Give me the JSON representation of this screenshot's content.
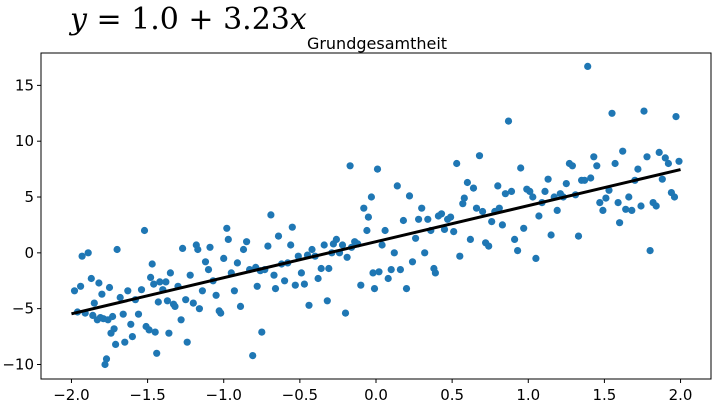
{
  "equation": {
    "var_y": "y",
    "middle": " = 1.0 + 3.23",
    "var_x": "x"
  },
  "chart_data": {
    "type": "scatter",
    "title": "Grundgesamtheit",
    "xlabel": "",
    "ylabel": "",
    "xlim": [
      -2.2,
      2.2
    ],
    "ylim": [
      -11.3,
      17.9
    ],
    "xticks": [
      -2.0,
      -1.5,
      -1.0,
      -0.5,
      0.0,
      0.5,
      1.0,
      1.5,
      2.0
    ],
    "xtick_labels": [
      "−2.0",
      "−1.5",
      "−1.0",
      "−0.5",
      "0.0",
      "0.5",
      "1.0",
      "1.5",
      "2.0"
    ],
    "yticks": [
      -10,
      -5,
      0,
      5,
      10,
      15
    ],
    "ytick_labels": [
      "−10",
      "−5",
      "0",
      "5",
      "10",
      "15"
    ],
    "grid": false,
    "point_color": "#1f77b4",
    "line_color": "#000000",
    "regression_line": {
      "intercept": 1.0,
      "slope": 3.23,
      "x": [
        -2.0,
        2.0
      ],
      "y": [
        -5.46,
        7.46
      ]
    },
    "points": [
      [
        -1.98,
        -3.4
      ],
      [
        -1.96,
        -5.3
      ],
      [
        -1.94,
        -3.0
      ],
      [
        -1.93,
        -0.3
      ],
      [
        -1.91,
        -5.4
      ],
      [
        -1.89,
        0.0
      ],
      [
        -1.87,
        -2.3
      ],
      [
        -1.86,
        -5.6
      ],
      [
        -1.85,
        -4.5
      ],
      [
        -1.83,
        -6.0
      ],
      [
        -1.82,
        -2.7
      ],
      [
        -1.81,
        -5.8
      ],
      [
        -1.8,
        -3.7
      ],
      [
        -1.79,
        -5.9
      ],
      [
        -1.78,
        -10.0
      ],
      [
        -1.77,
        -9.5
      ],
      [
        -1.76,
        -6.0
      ],
      [
        -1.75,
        -3.1
      ],
      [
        -1.74,
        -7.2
      ],
      [
        -1.73,
        -5.7
      ],
      [
        -1.72,
        -6.8
      ],
      [
        -1.71,
        -8.2
      ],
      [
        -1.7,
        0.3
      ],
      [
        -1.68,
        -4.0
      ],
      [
        -1.66,
        -5.5
      ],
      [
        -1.65,
        -8.0
      ],
      [
        -1.63,
        -3.4
      ],
      [
        -1.61,
        -6.4
      ],
      [
        -1.6,
        -7.5
      ],
      [
        -1.58,
        -4.2
      ],
      [
        -1.56,
        -5.5
      ],
      [
        -1.54,
        -3.3
      ],
      [
        -1.52,
        2.0
      ],
      [
        -1.51,
        -6.6
      ],
      [
        -1.49,
        -6.9
      ],
      [
        -1.48,
        -2.2
      ],
      [
        -1.47,
        -1.0
      ],
      [
        -1.46,
        -2.8
      ],
      [
        -1.45,
        -7.1
      ],
      [
        -1.44,
        -9.0
      ],
      [
        -1.43,
        -4.4
      ],
      [
        -1.42,
        -2.6
      ],
      [
        -1.4,
        -3.3
      ],
      [
        -1.38,
        -2.6
      ],
      [
        -1.37,
        -4.3
      ],
      [
        -1.36,
        -7.2
      ],
      [
        -1.35,
        -1.8
      ],
      [
        -1.33,
        -4.6
      ],
      [
        -1.32,
        -4.8
      ],
      [
        -1.3,
        -3.0
      ],
      [
        -1.28,
        -6.0
      ],
      [
        -1.27,
        0.4
      ],
      [
        -1.25,
        -4.2
      ],
      [
        -1.24,
        -8.0
      ],
      [
        -1.22,
        -2.0
      ],
      [
        -1.2,
        -4.5
      ],
      [
        -1.18,
        0.7
      ],
      [
        -1.17,
        0.3
      ],
      [
        -1.16,
        -5.0
      ],
      [
        -1.14,
        -3.4
      ],
      [
        -1.12,
        -0.8
      ],
      [
        -1.1,
        -1.5
      ],
      [
        -1.09,
        0.5
      ],
      [
        -1.07,
        -2.5
      ],
      [
        -1.05,
        -3.8
      ],
      [
        -1.03,
        -5.2
      ],
      [
        -1.02,
        -5.4
      ],
      [
        -1.0,
        -0.5
      ],
      [
        -0.98,
        2.2
      ],
      [
        -0.97,
        1.2
      ],
      [
        -0.95,
        -1.8
      ],
      [
        -0.93,
        -3.4
      ],
      [
        -0.91,
        -0.9
      ],
      [
        -0.89,
        -4.8
      ],
      [
        -0.87,
        0.3
      ],
      [
        -0.85,
        1.0
      ],
      [
        -0.83,
        -1.5
      ],
      [
        -0.81,
        -9.2
      ],
      [
        -0.79,
        -1.3
      ],
      [
        -0.78,
        -3.0
      ],
      [
        -0.76,
        -1.6
      ],
      [
        -0.75,
        -7.1
      ],
      [
        -0.73,
        -1.5
      ],
      [
        -0.71,
        0.6
      ],
      [
        -0.69,
        3.4
      ],
      [
        -0.67,
        -2.0
      ],
      [
        -0.66,
        -3.2
      ],
      [
        -0.64,
        1.5
      ],
      [
        -0.62,
        -1.0
      ],
      [
        -0.6,
        -2.5
      ],
      [
        -0.58,
        -0.9
      ],
      [
        -0.56,
        0.7
      ],
      [
        -0.55,
        2.3
      ],
      [
        -0.53,
        -2.9
      ],
      [
        -0.51,
        -0.3
      ],
      [
        -0.49,
        -1.8
      ],
      [
        -0.47,
        -2.8
      ],
      [
        -0.45,
        -0.2
      ],
      [
        -0.44,
        -4.7
      ],
      [
        -0.42,
        0.3
      ],
      [
        -0.4,
        -0.3
      ],
      [
        -0.38,
        -2.3
      ],
      [
        -0.36,
        -1.4
      ],
      [
        -0.34,
        0.7
      ],
      [
        -0.32,
        -4.3
      ],
      [
        -0.31,
        -1.4
      ],
      [
        -0.29,
        0.0
      ],
      [
        -0.28,
        0.8
      ],
      [
        -0.26,
        1.2
      ],
      [
        -0.24,
        0.0
      ],
      [
        -0.22,
        0.7
      ],
      [
        -0.2,
        -5.4
      ],
      [
        -0.19,
        -0.4
      ],
      [
        -0.17,
        7.8
      ],
      [
        -0.16,
        0.5
      ],
      [
        -0.14,
        1.0
      ],
      [
        -0.12,
        0.8
      ],
      [
        -0.1,
        -2.9
      ],
      [
        -0.08,
        4.0
      ],
      [
        -0.06,
        2.0
      ],
      [
        -0.05,
        3.2
      ],
      [
        -0.03,
        5.0
      ],
      [
        -0.02,
        -1.8
      ],
      [
        -0.01,
        -3.2
      ],
      [
        0.01,
        7.5
      ],
      [
        0.02,
        -1.7
      ],
      [
        0.04,
        0.7
      ],
      [
        0.06,
        2.0
      ],
      [
        0.08,
        -2.3
      ],
      [
        0.1,
        -1.5
      ],
      [
        0.12,
        0.0
      ],
      [
        0.14,
        6.0
      ],
      [
        0.16,
        -1.5
      ],
      [
        0.18,
        2.9
      ],
      [
        0.2,
        -3.2
      ],
      [
        0.22,
        5.1
      ],
      [
        0.24,
        -0.8
      ],
      [
        0.26,
        1.3
      ],
      [
        0.28,
        3.0
      ],
      [
        0.3,
        4.0
      ],
      [
        0.32,
        0.0
      ],
      [
        0.34,
        3.0
      ],
      [
        0.36,
        2.0
      ],
      [
        0.38,
        -1.4
      ],
      [
        0.39,
        -1.8
      ],
      [
        0.41,
        3.3
      ],
      [
        0.43,
        3.5
      ],
      [
        0.45,
        2.1
      ],
      [
        0.47,
        3.0
      ],
      [
        0.49,
        3.2
      ],
      [
        0.51,
        1.9
      ],
      [
        0.53,
        8.0
      ],
      [
        0.55,
        -0.3
      ],
      [
        0.57,
        4.4
      ],
      [
        0.58,
        4.9
      ],
      [
        0.6,
        6.3
      ],
      [
        0.62,
        1.2
      ],
      [
        0.64,
        5.8
      ],
      [
        0.66,
        4.0
      ],
      [
        0.68,
        8.7
      ],
      [
        0.7,
        3.7
      ],
      [
        0.72,
        0.9
      ],
      [
        0.74,
        0.6
      ],
      [
        0.76,
        2.8
      ],
      [
        0.78,
        3.7
      ],
      [
        0.8,
        6.0
      ],
      [
        0.81,
        4.0
      ],
      [
        0.83,
        2.5
      ],
      [
        0.85,
        5.3
      ],
      [
        0.87,
        11.8
      ],
      [
        0.89,
        5.5
      ],
      [
        0.91,
        1.2
      ],
      [
        0.93,
        0.2
      ],
      [
        0.95,
        7.6
      ],
      [
        0.97,
        2.2
      ],
      [
        0.99,
        5.7
      ],
      [
        1.01,
        5.5
      ],
      [
        1.03,
        5.0
      ],
      [
        1.05,
        -0.5
      ],
      [
        1.07,
        3.3
      ],
      [
        1.09,
        4.5
      ],
      [
        1.11,
        5.5
      ],
      [
        1.13,
        6.6
      ],
      [
        1.15,
        1.6
      ],
      [
        1.17,
        5.0
      ],
      [
        1.19,
        3.8
      ],
      [
        1.21,
        5.3
      ],
      [
        1.23,
        5.0
      ],
      [
        1.25,
        6.2
      ],
      [
        1.27,
        8.0
      ],
      [
        1.29,
        7.8
      ],
      [
        1.31,
        5.2
      ],
      [
        1.33,
        1.5
      ],
      [
        1.35,
        6.5
      ],
      [
        1.37,
        6.5
      ],
      [
        1.39,
        16.7
      ],
      [
        1.41,
        6.7
      ],
      [
        1.43,
        8.6
      ],
      [
        1.45,
        7.8
      ],
      [
        1.47,
        4.5
      ],
      [
        1.49,
        3.8
      ],
      [
        1.51,
        4.9
      ],
      [
        1.53,
        5.6
      ],
      [
        1.55,
        12.5
      ],
      [
        1.57,
        8.0
      ],
      [
        1.59,
        4.5
      ],
      [
        1.6,
        2.7
      ],
      [
        1.62,
        9.1
      ],
      [
        1.64,
        3.9
      ],
      [
        1.66,
        5.0
      ],
      [
        1.68,
        3.8
      ],
      [
        1.7,
        6.5
      ],
      [
        1.72,
        7.5
      ],
      [
        1.74,
        4.2
      ],
      [
        1.76,
        12.7
      ],
      [
        1.78,
        8.6
      ],
      [
        1.8,
        0.2
      ],
      [
        1.82,
        4.5
      ],
      [
        1.84,
        4.2
      ],
      [
        1.86,
        9.0
      ],
      [
        1.88,
        6.6
      ],
      [
        1.9,
        8.5
      ],
      [
        1.92,
        8.0
      ],
      [
        1.94,
        5.4
      ],
      [
        1.96,
        5.0
      ],
      [
        1.97,
        12.2
      ],
      [
        1.99,
        8.2
      ]
    ]
  }
}
